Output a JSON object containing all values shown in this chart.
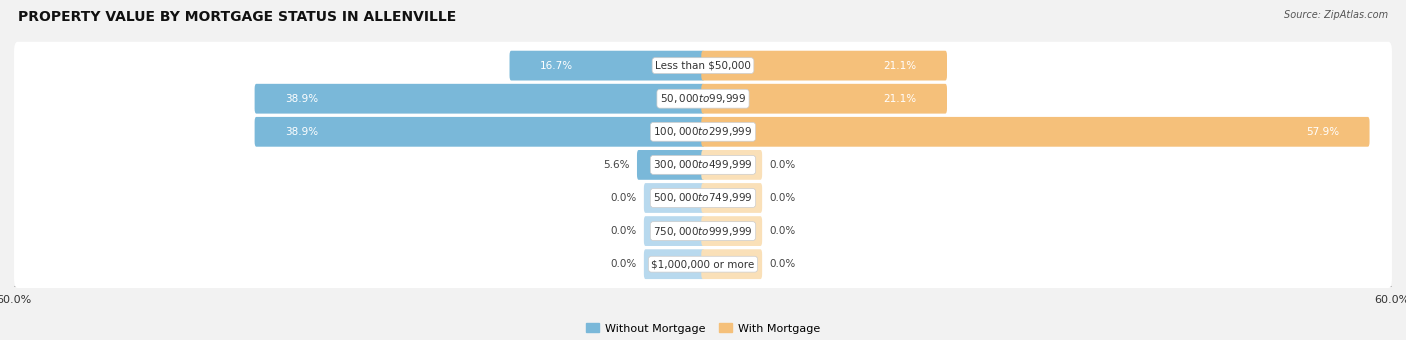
{
  "title": "PROPERTY VALUE BY MORTGAGE STATUS IN ALLENVILLE",
  "source": "Source: ZipAtlas.com",
  "categories": [
    "Less than $50,000",
    "$50,000 to $99,999",
    "$100,000 to $299,999",
    "$300,000 to $499,999",
    "$500,000 to $749,999",
    "$750,000 to $999,999",
    "$1,000,000 or more"
  ],
  "without_mortgage": [
    16.7,
    38.9,
    38.9,
    5.6,
    0.0,
    0.0,
    0.0
  ],
  "with_mortgage": [
    21.1,
    21.1,
    57.9,
    0.0,
    0.0,
    0.0,
    0.0
  ],
  "color_without": "#7ab8d9",
  "color_with": "#f5c07a",
  "color_without_light": "#b8d9ee",
  "color_with_light": "#fae0b8",
  "axis_max": 60.0,
  "bg_color": "#f2f2f2",
  "row_bg_color": "#e6e6e6",
  "title_fontsize": 10,
  "label_fontsize": 7.5,
  "tick_fontsize": 8,
  "min_bar_stub": 5.0
}
